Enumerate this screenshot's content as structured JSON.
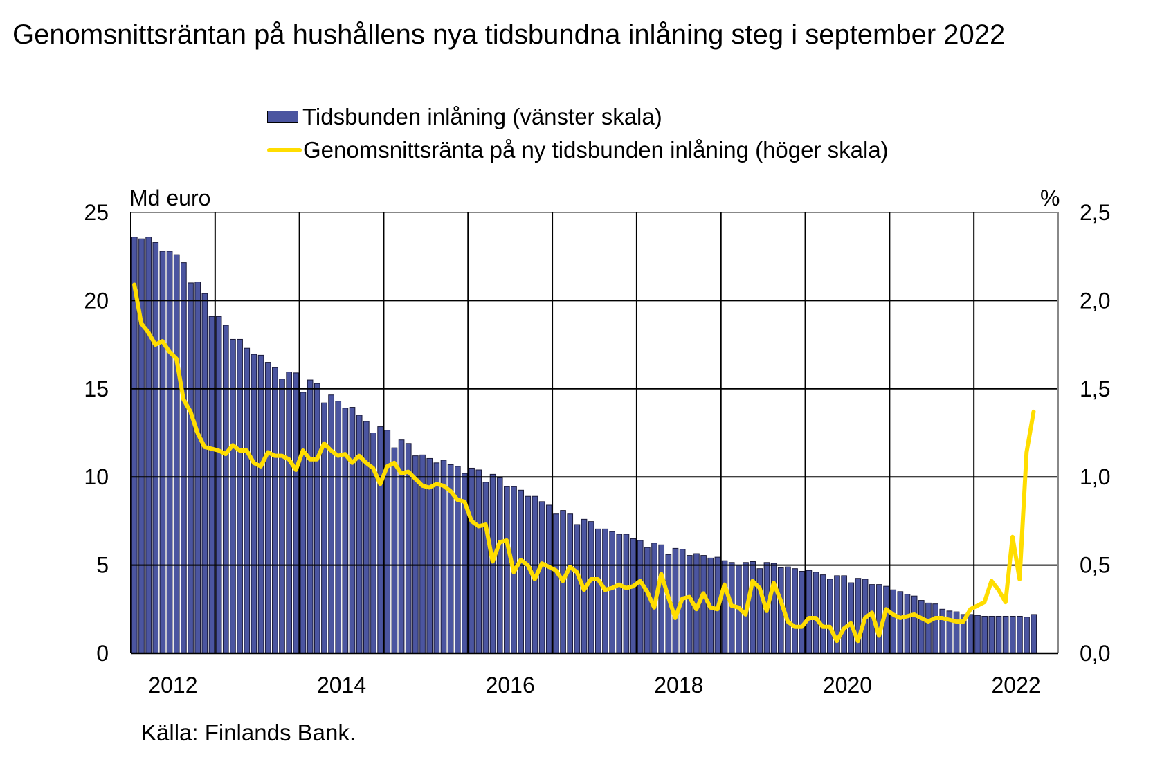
{
  "chart_data": {
    "type": "bar+line",
    "title": "Genomsnittsräntan på hushållens nya tidsbundna inlåning steg i september 2022",
    "source": "Källa:  Finlands Bank.",
    "left_axis": {
      "unit_label": "Md euro",
      "range": [
        0,
        25
      ],
      "ticks": [
        "0",
        "5",
        "10",
        "15",
        "20",
        "25"
      ]
    },
    "right_axis": {
      "unit_label": "%",
      "range": [
        0,
        2.5
      ],
      "ticks": [
        "0,0",
        "0,5",
        "1,0",
        "1,5",
        "2,0",
        "2,5"
      ]
    },
    "x_axis": {
      "start": "2012-01",
      "end": "2022-12",
      "tick_labels": [
        "2012",
        "2014",
        "2016",
        "2018",
        "2020",
        "2022"
      ],
      "frequency": "monthly"
    },
    "grid": true,
    "legend_placement": "top",
    "colors": {
      "bars": "#4b55a0",
      "line": "#ffdd00"
    },
    "series": [
      {
        "name": "Tidsbunden inlåning (vänster skala)",
        "type": "bar",
        "axis": "left",
        "start": "2012-01",
        "values": [
          23.6,
          23.5,
          23.6,
          23.3,
          22.8,
          22.8,
          22.6,
          22.15,
          21.0,
          21.05,
          20.4,
          19.1,
          19.1,
          18.6,
          17.8,
          17.8,
          17.3,
          16.95,
          16.9,
          16.5,
          16.2,
          15.55,
          15.95,
          15.9,
          14.8,
          15.5,
          15.3,
          14.2,
          14.65,
          14.3,
          13.9,
          13.95,
          13.5,
          13.15,
          12.5,
          12.85,
          12.65,
          11.65,
          12.1,
          11.9,
          11.2,
          11.25,
          11.05,
          10.8,
          10.95,
          10.7,
          10.6,
          10.2,
          10.5,
          10.4,
          9.7,
          10.15,
          9.95,
          9.45,
          9.45,
          9.25,
          8.9,
          8.9,
          8.6,
          8.4,
          7.9,
          8.1,
          7.9,
          7.3,
          7.6,
          7.47,
          7.05,
          7.05,
          6.9,
          6.75,
          6.75,
          6.5,
          6.4,
          6.0,
          6.25,
          6.15,
          5.6,
          5.95,
          5.9,
          5.55,
          5.65,
          5.55,
          5.4,
          5.45,
          5.25,
          5.15,
          5.0,
          5.15,
          5.2,
          4.8,
          5.15,
          5.1,
          4.85,
          4.9,
          4.8,
          4.65,
          4.7,
          4.6,
          4.45,
          4.2,
          4.4,
          4.4,
          4.0,
          4.25,
          4.2,
          3.9,
          3.9,
          3.8,
          3.6,
          3.5,
          3.35,
          3.25,
          3.0,
          2.85,
          2.8,
          2.5,
          2.4,
          2.35,
          2.2,
          2.2,
          2.15,
          2.1,
          2.1,
          2.1,
          2.1,
          2.1,
          2.1,
          2.05,
          2.2
        ]
      },
      {
        "name": "Genomsnittsränta på ny tidsbunden inlåning (höger skala)",
        "type": "line",
        "axis": "right",
        "start": "2012-01",
        "values": [
          2.09,
          1.87,
          1.82,
          1.75,
          1.77,
          1.71,
          1.67,
          1.44,
          1.37,
          1.25,
          1.17,
          1.16,
          1.15,
          1.13,
          1.18,
          1.15,
          1.15,
          1.08,
          1.06,
          1.14,
          1.12,
          1.12,
          1.1,
          1.04,
          1.15,
          1.1,
          1.1,
          1.19,
          1.15,
          1.12,
          1.13,
          1.08,
          1.12,
          1.08,
          1.05,
          0.96,
          1.06,
          1.08,
          1.02,
          1.03,
          0.99,
          0.95,
          0.94,
          0.96,
          0.95,
          0.92,
          0.87,
          0.86,
          0.75,
          0.72,
          0.73,
          0.52,
          0.63,
          0.64,
          0.46,
          0.53,
          0.5,
          0.42,
          0.51,
          0.49,
          0.47,
          0.41,
          0.49,
          0.46,
          0.36,
          0.42,
          0.42,
          0.36,
          0.37,
          0.39,
          0.37,
          0.38,
          0.41,
          0.35,
          0.26,
          0.45,
          0.32,
          0.2,
          0.31,
          0.32,
          0.25,
          0.34,
          0.26,
          0.25,
          0.39,
          0.27,
          0.26,
          0.22,
          0.41,
          0.37,
          0.24,
          0.4,
          0.3,
          0.18,
          0.15,
          0.15,
          0.2,
          0.2,
          0.15,
          0.15,
          0.07,
          0.14,
          0.17,
          0.07,
          0.2,
          0.23,
          0.1,
          0.25,
          0.22,
          0.2,
          0.21,
          0.22,
          0.2,
          0.18,
          0.2,
          0.2,
          0.19,
          0.18,
          0.18,
          0.25,
          0.27,
          0.29,
          0.41,
          0.36,
          0.29,
          0.66,
          0.42,
          1.14,
          1.37
        ]
      }
    ]
  }
}
